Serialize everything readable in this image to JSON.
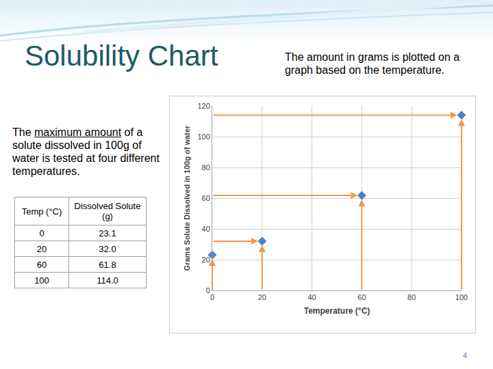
{
  "slide": {
    "title": "Solubility Chart",
    "note": "The amount in grams is plotted on a graph based on the temperature.",
    "intro": {
      "before": "The ",
      "underlined": "maximum amount",
      "after": " of a solute dissolved in 100g of water is tested at four different temperatures."
    },
    "table": {
      "header": [
        "Temp (°C)",
        "Dissolved Solute (g)"
      ],
      "rows": [
        [
          "0",
          "23.1"
        ],
        [
          "20",
          "32.0"
        ],
        [
          "60",
          "61.8"
        ],
        [
          "100",
          "114.0"
        ]
      ]
    },
    "page": "4"
  },
  "chart_data": {
    "type": "scatter",
    "x": [
      0,
      20,
      60,
      100
    ],
    "values": [
      23.1,
      32.0,
      61.8,
      114.0
    ],
    "color": "#4f81bd",
    "marker": "diamond",
    "x_label": "Temperature (°C)",
    "y_label": "Grams Solute Dissolved in 100g of water",
    "xlim": [
      0,
      100
    ],
    "xticks": [
      0,
      20,
      40,
      60,
      80,
      100
    ],
    "ylim": [
      0,
      120
    ],
    "yticks": [
      0,
      20,
      40,
      60,
      80,
      100,
      120
    ],
    "grid": true
  }
}
